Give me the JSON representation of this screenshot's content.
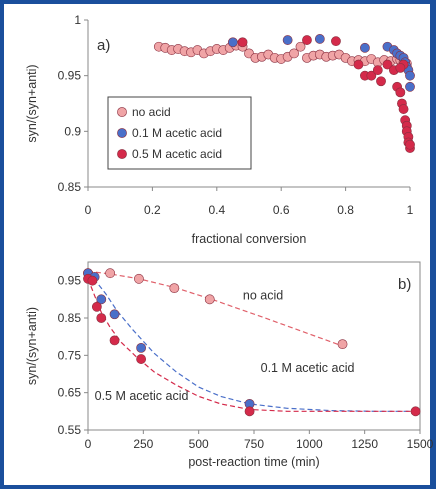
{
  "chart_data": [
    {
      "type": "scatter",
      "panel_label": "a)",
      "xlabel": "fractional conversion",
      "ylabel": "syn/(syn+anti)",
      "xlim": [
        0,
        1
      ],
      "ylim": [
        0.85,
        1
      ],
      "x_ticks": [
        "0",
        "0.2",
        "0.4",
        "0.6",
        "0.8",
        "1"
      ],
      "y_ticks": [
        "0.85",
        "0.9",
        "0.95",
        "1"
      ],
      "grid": false,
      "legend_position": "bottom-left",
      "series": [
        {
          "name": "0.1 M acetic acid",
          "color": "#4a6fc9",
          "x": [
            0.45,
            0.62,
            0.72,
            0.86,
            0.93,
            0.95,
            0.96,
            0.97,
            0.98,
            0.985,
            0.99,
            0.995,
            1.0,
            1.0
          ],
          "y": [
            0.98,
            0.982,
            0.983,
            0.975,
            0.976,
            0.973,
            0.97,
            0.968,
            0.966,
            0.962,
            0.958,
            0.955,
            0.95,
            0.94
          ]
        },
        {
          "name": "0.5 M acetic acid",
          "color": "#d42a4a",
          "x": [
            0.48,
            0.68,
            0.77,
            0.84,
            0.86,
            0.88,
            0.9,
            0.91,
            0.93,
            0.95,
            0.96,
            0.97,
            0.975,
            0.98,
            0.985,
            0.99,
            0.99,
            0.995,
            0.995,
            1.0,
            1.0,
            0.98,
            0.97
          ],
          "y": [
            0.98,
            0.982,
            0.981,
            0.96,
            0.95,
            0.95,
            0.955,
            0.945,
            0.96,
            0.955,
            0.94,
            0.935,
            0.925,
            0.92,
            0.91,
            0.905,
            0.9,
            0.895,
            0.89,
            0.885,
            0.888,
            0.96,
            0.957
          ]
        },
        {
          "name": "no acid",
          "color": "#f0a4a6",
          "x": [
            0.22,
            0.24,
            0.26,
            0.28,
            0.3,
            0.32,
            0.34,
            0.36,
            0.38,
            0.4,
            0.42,
            0.44,
            0.46,
            0.48,
            0.5,
            0.52,
            0.54,
            0.56,
            0.58,
            0.6,
            0.62,
            0.64,
            0.66,
            0.68,
            0.7,
            0.72,
            0.74,
            0.76,
            0.78,
            0.8,
            0.82,
            0.84,
            0.86,
            0.88,
            0.9,
            0.92,
            0.94,
            0.96,
            0.97,
            0.98,
            0.99
          ],
          "y": [
            0.976,
            0.975,
            0.973,
            0.974,
            0.972,
            0.971,
            0.973,
            0.97,
            0.972,
            0.974,
            0.973,
            0.975,
            0.977,
            0.976,
            0.97,
            0.966,
            0.967,
            0.969,
            0.966,
            0.965,
            0.967,
            0.97,
            0.976,
            0.966,
            0.968,
            0.969,
            0.967,
            0.968,
            0.969,
            0.966,
            0.963,
            0.964,
            0.963,
            0.965,
            0.962,
            0.964,
            0.963,
            0.965,
            0.964,
            0.962,
            0.961
          ]
        }
      ],
      "legend_order": [
        "no acid",
        "0.1 M acetic acid",
        "0.5 M acetic acid"
      ]
    },
    {
      "type": "line",
      "panel_label": "b)",
      "xlabel": "post-reaction time (min)",
      "ylabel": "syn/(syn+anti)",
      "xlim": [
        0,
        1500
      ],
      "ylim": [
        0.55,
        1.0
      ],
      "x_ticks": [
        "0",
        "250",
        "500",
        "750",
        "1000",
        "1250",
        "1500"
      ],
      "y_ticks": [
        "0.55",
        "0.65",
        "0.75",
        "0.85",
        "0.95"
      ],
      "grid": false,
      "series": [
        {
          "name": "no acid",
          "color": "#f0a4a6",
          "line_color": "#e0606a",
          "x": [
            0,
            100,
            230,
            390,
            550,
            1150
          ],
          "y": [
            0.97,
            0.97,
            0.955,
            0.93,
            0.9,
            0.78
          ],
          "fit_x": [
            0,
            100,
            230,
            390,
            550,
            800,
            1150
          ],
          "fit_y": [
            0.975,
            0.968,
            0.955,
            0.932,
            0.902,
            0.85,
            0.775
          ]
        },
        {
          "name": "0.1 M acetic acid",
          "color": "#4a6fc9",
          "line_color": "#4a6fc9",
          "x": [
            0,
            30,
            60,
            120,
            240,
            730
          ],
          "y": [
            0.97,
            0.96,
            0.9,
            0.86,
            0.77,
            0.62
          ],
          "fit_x": [
            0,
            40,
            80,
            130,
            200,
            300,
            400,
            500,
            600,
            730,
            900,
            1100,
            1300,
            1480
          ],
          "fit_y": [
            0.97,
            0.945,
            0.915,
            0.87,
            0.82,
            0.755,
            0.705,
            0.665,
            0.64,
            0.62,
            0.608,
            0.602,
            0.6,
            0.6
          ]
        },
        {
          "name": "0.5 M acetic acid",
          "color": "#d42a4a",
          "line_color": "#d42a4a",
          "x": [
            0,
            20,
            40,
            60,
            120,
            240,
            730,
            1480
          ],
          "y": [
            0.955,
            0.95,
            0.88,
            0.85,
            0.79,
            0.74,
            0.6,
            0.6
          ],
          "fit_x": [
            0,
            30,
            60,
            100,
            150,
            220,
            300,
            400,
            500,
            600,
            730,
            900,
            1100,
            1300,
            1480
          ],
          "fit_y": [
            0.955,
            0.91,
            0.865,
            0.825,
            0.785,
            0.745,
            0.705,
            0.67,
            0.64,
            0.62,
            0.605,
            0.6,
            0.6,
            0.6,
            0.6
          ]
        }
      ],
      "annotations": [
        {
          "text": "no acid",
          "x": 700,
          "y": 0.9
        },
        {
          "text": "0.1 M acetic acid",
          "x": 780,
          "y": 0.705
        },
        {
          "text": "0.5 M acetic acid",
          "x": 30,
          "y": 0.63
        }
      ]
    }
  ]
}
